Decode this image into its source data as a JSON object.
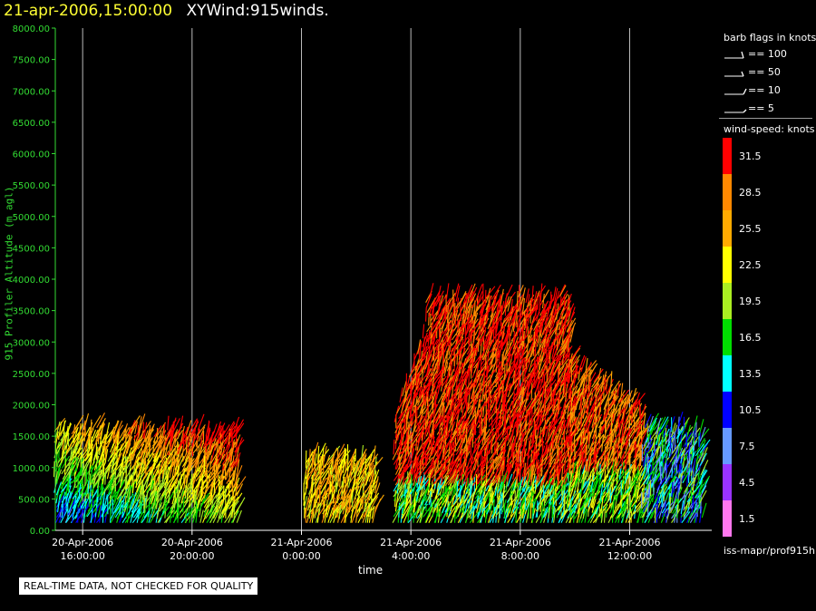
{
  "header": {
    "timestamp": "21-apr-2006,15:00:00",
    "name": "XYWind:915winds."
  },
  "chart_data": {
    "type": "wind-barb profile time-height",
    "ylabel": "915 Profiler Altitude (m agl)",
    "xlabel": "time",
    "ylim": [
      0,
      8000
    ],
    "yticks": [
      "0.00",
      "500.00",
      "1000.00",
      "1500.00",
      "2000.00",
      "2500.00",
      "3000.00",
      "3500.00",
      "4000.00",
      "4500.00",
      "5000.00",
      "5500.00",
      "6000.00",
      "6500.00",
      "7000.00",
      "7500.00",
      "8000.00"
    ],
    "xlim_hours": [
      15,
      39
    ],
    "xticks": [
      {
        "h": 16,
        "date": "20-Apr-2006",
        "time": "16:00:00"
      },
      {
        "h": 20,
        "date": "20-Apr-2006",
        "time": "20:00:00"
      },
      {
        "h": 24,
        "date": "21-Apr-2006",
        "time": "0:00:00"
      },
      {
        "h": 28,
        "date": "21-Apr-2006",
        "time": "4:00:00"
      },
      {
        "h": 32,
        "date": "21-Apr-2006",
        "time": "8:00:00"
      },
      {
        "h": 36,
        "date": "21-Apr-2006",
        "time": "12:00:00"
      }
    ],
    "grid": "vertical"
  },
  "legend": {
    "barb_title": "barb flags in knots",
    "barb_flags": [
      "== 100",
      "== 50",
      "== 10",
      "== 5"
    ],
    "speed_title": "wind-speed: knots",
    "speed_bins": [
      {
        "label": "31.5",
        "color": "#ff0000"
      },
      {
        "label": "28.5",
        "color": "#ff8800"
      },
      {
        "label": "25.5",
        "color": "#ffaa00"
      },
      {
        "label": "22.5",
        "color": "#ffff00"
      },
      {
        "label": "19.5",
        "color": "#aaee22"
      },
      {
        "label": "16.5",
        "color": "#00dd00"
      },
      {
        "label": "13.5",
        "color": "#00ffff"
      },
      {
        "label": "10.5",
        "color": "#0000ff"
      },
      {
        "label": "7.5",
        "color": "#6699ff"
      },
      {
        "label": "4.5",
        "color": "#9933ff"
      },
      {
        "label": "1.5",
        "color": "#ff77ee"
      }
    ],
    "source": "iss-mapr/prof915h"
  },
  "disclaimer": "REAL-TIME DATA, NOT CHECKED FOR QUALITY"
}
